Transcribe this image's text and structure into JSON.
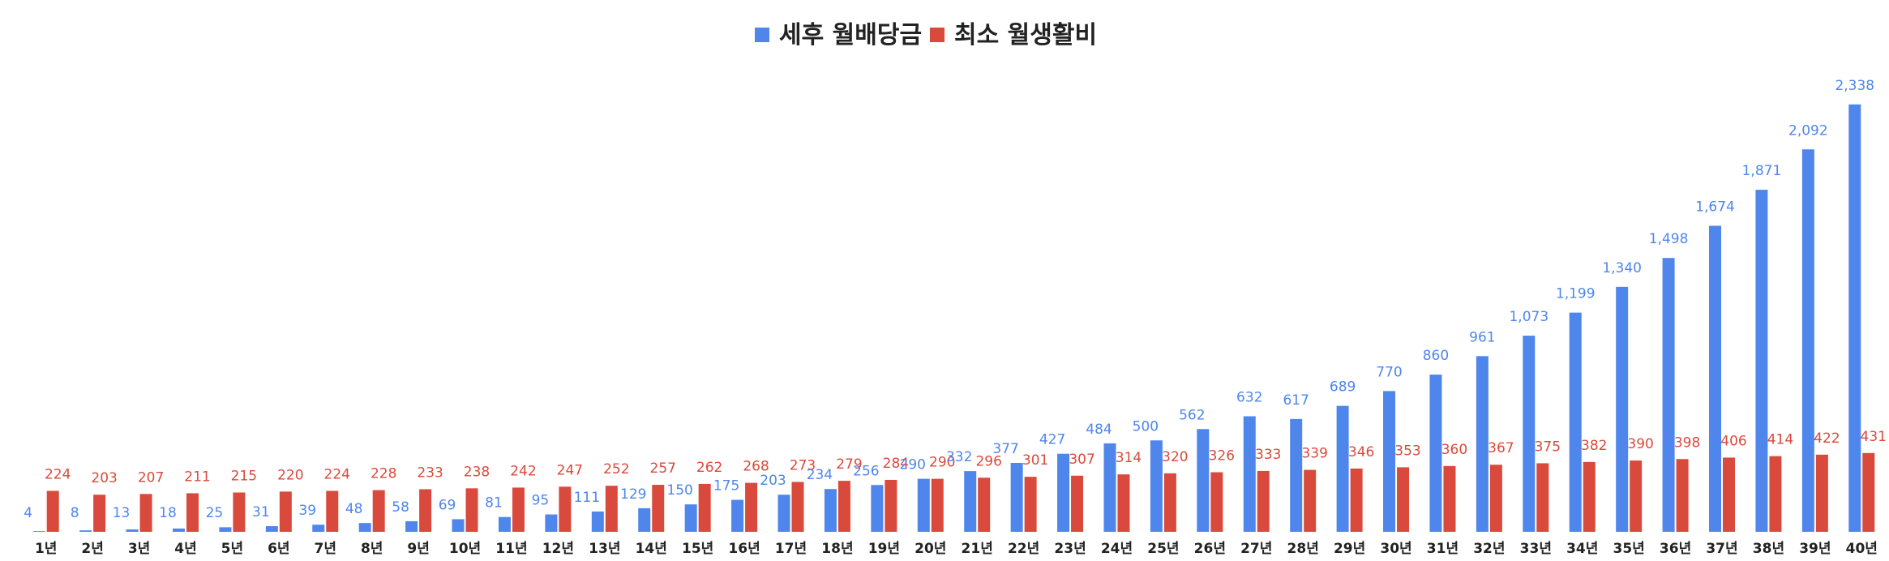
{
  "chart_data": {
    "type": "bar",
    "title": "",
    "xlabel": "",
    "ylabel": "",
    "ylim": [
      0,
      2600
    ],
    "grid": false,
    "legend_position": "top-center",
    "categories": [
      "1년",
      "2년",
      "3년",
      "4년",
      "5년",
      "6년",
      "7년",
      "8년",
      "9년",
      "10년",
      "11년",
      "12년",
      "13년",
      "14년",
      "15년",
      "16년",
      "17년",
      "18년",
      "19년",
      "20년",
      "21년",
      "22년",
      "23년",
      "24년",
      "25년",
      "26년",
      "27년",
      "28년",
      "29년",
      "30년",
      "31년",
      "32년",
      "33년",
      "34년",
      "35년",
      "36년",
      "37년",
      "38년",
      "39년",
      "40년"
    ],
    "series": [
      {
        "name": "세후 월배당금",
        "color": "#4f86ec",
        "values": [
          4,
          8,
          13,
          18,
          25,
          31,
          39,
          48,
          58,
          69,
          81,
          95,
          111,
          129,
          150,
          175,
          203,
          234,
          256,
          290,
          332,
          377,
          427,
          484,
          500,
          562,
          632,
          617,
          689,
          770,
          860,
          961,
          1073,
          1199,
          1340,
          1498,
          1674,
          1871,
          2092,
          2338
        ],
        "labels": [
          "4",
          "8",
          "13",
          "18",
          "25",
          "31",
          "39",
          "48",
          "58",
          "69",
          "81",
          "95",
          "111",
          "129",
          "150",
          "175",
          "203",
          "234",
          "256",
          "290",
          "332",
          "377",
          "427",
          "484",
          "500",
          "562",
          "632",
          "617",
          "689",
          "770",
          "860",
          "961",
          "1,073",
          "1,199",
          "1,340",
          "1,498",
          "1,674",
          "1,871",
          "2,092",
          "2,338"
        ]
      },
      {
        "name": "최소 월생활비",
        "color": "#da4a3c",
        "values": [
          224,
          203,
          207,
          211,
          215,
          220,
          224,
          228,
          233,
          238,
          242,
          247,
          252,
          257,
          262,
          268,
          273,
          279,
          284,
          290,
          296,
          301,
          307,
          314,
          320,
          326,
          333,
          339,
          346,
          353,
          360,
          367,
          375,
          382,
          390,
          398,
          406,
          414,
          422,
          431
        ],
        "labels": [
          "224",
          "203",
          "207",
          "211",
          "215",
          "220",
          "224",
          "228",
          "233",
          "238",
          "242",
          "247",
          "252",
          "257",
          "262",
          "268",
          "273",
          "279",
          "284",
          "290",
          "296",
          "301",
          "307",
          "314",
          "320",
          "326",
          "333",
          "339",
          "346",
          "353",
          "360",
          "367",
          "375",
          "382",
          "390",
          "398",
          "406",
          "414",
          "422",
          "431"
        ]
      }
    ]
  }
}
